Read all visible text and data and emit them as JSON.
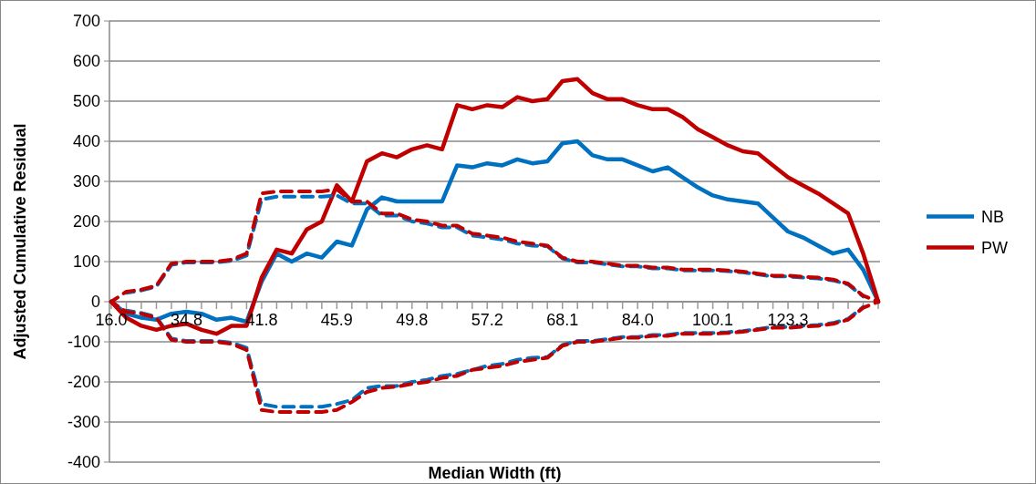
{
  "chart_data": {
    "type": "line",
    "xlabel": "Median Width (ft)",
    "ylabel": "Adjusted Cumulative Residual",
    "categories": [
      "16.0",
      null,
      null,
      null,
      null,
      "34.8",
      null,
      null,
      null,
      null,
      "41.8",
      null,
      null,
      null,
      null,
      "45.9",
      null,
      null,
      null,
      null,
      "49.8",
      null,
      null,
      null,
      null,
      "57.2",
      null,
      null,
      null,
      null,
      "68.1",
      null,
      null,
      null,
      null,
      "84.0",
      null,
      null,
      null,
      null,
      "100.1",
      null,
      null,
      null,
      null,
      "123.3",
      null,
      null,
      null,
      null,
      null,
      null
    ],
    "ylim": [
      -400,
      700
    ],
    "yticks": [
      -400,
      -300,
      -200,
      -100,
      0,
      100,
      200,
      300,
      400,
      500,
      600,
      700
    ],
    "grid": "y",
    "legend": "right",
    "marker": "none",
    "series": [
      {
        "name": "NB",
        "color": "#0070c0",
        "line_style": "solid",
        "values": [
          0,
          -30,
          -40,
          -45,
          -30,
          -25,
          -30,
          -45,
          -40,
          -50,
          50,
          120,
          100,
          120,
          110,
          150,
          140,
          230,
          260,
          250,
          250,
          250,
          250,
          340,
          335,
          345,
          340,
          355,
          345,
          350,
          395,
          400,
          365,
          355,
          355,
          340,
          325,
          335,
          310,
          285,
          265,
          255,
          250,
          245,
          210,
          175,
          160,
          140,
          120,
          130,
          80,
          0
        ]
      },
      {
        "name": "PW",
        "color": "#c00000",
        "line_style": "solid",
        "values": [
          0,
          -40,
          -60,
          -70,
          -60,
          -55,
          -70,
          -80,
          -60,
          -60,
          60,
          130,
          120,
          180,
          200,
          290,
          250,
          350,
          370,
          360,
          380,
          390,
          380,
          490,
          480,
          490,
          485,
          510,
          500,
          505,
          550,
          555,
          520,
          505,
          505,
          490,
          480,
          480,
          460,
          430,
          410,
          390,
          375,
          370,
          340,
          310,
          290,
          270,
          245,
          220,
          120,
          0
        ]
      },
      {
        "color": "#0070c0",
        "line_style": "dashed",
        "values": [
          null,
          22,
          28,
          38,
          92,
          98,
          98,
          98,
          102,
          115,
          255,
          262,
          262,
          262,
          262,
          265,
          245,
          245,
          215,
          215,
          200,
          195,
          185,
          185,
          165,
          160,
          155,
          145,
          140,
          138,
          108,
          98,
          98,
          93,
          88,
          88,
          83,
          83,
          78,
          78,
          78,
          76,
          73,
          68,
          63,
          63,
          60,
          58,
          53,
          43,
          13,
          null
        ]
      },
      {
        "color": "#0070c0",
        "line_style": "dashed",
        "values": [
          null,
          -22,
          -28,
          -38,
          -92,
          -98,
          -98,
          -98,
          -102,
          -115,
          -255,
          -262,
          -262,
          -262,
          -262,
          -255,
          -245,
          -215,
          -210,
          -210,
          -200,
          -195,
          -185,
          -180,
          -170,
          -160,
          -155,
          -145,
          -140,
          -138,
          -108,
          -98,
          -98,
          -93,
          -88,
          -88,
          -83,
          -83,
          -78,
          -78,
          -78,
          -76,
          -73,
          -68,
          -63,
          -63,
          -60,
          -58,
          -53,
          -43,
          -13,
          null
        ]
      },
      {
        "color": "#c00000",
        "line_style": "dashed",
        "values": [
          0,
          25,
          30,
          40,
          95,
          100,
          100,
          100,
          105,
          120,
          270,
          275,
          275,
          275,
          275,
          280,
          250,
          250,
          220,
          220,
          205,
          200,
          190,
          190,
          170,
          165,
          160,
          150,
          145,
          140,
          110,
          100,
          100,
          95,
          90,
          90,
          85,
          85,
          80,
          80,
          80,
          78,
          75,
          70,
          65,
          65,
          62,
          60,
          55,
          45,
          15,
          0
        ]
      },
      {
        "color": "#c00000",
        "line_style": "dashed",
        "values": [
          0,
          -25,
          -30,
          -40,
          -95,
          -100,
          -100,
          -100,
          -105,
          -120,
          -270,
          -275,
          -275,
          -275,
          -275,
          -270,
          -250,
          -225,
          -215,
          -212,
          -205,
          -200,
          -190,
          -185,
          -170,
          -165,
          -160,
          -150,
          -145,
          -140,
          -110,
          -100,
          -100,
          -95,
          -90,
          -90,
          -85,
          -85,
          -80,
          -80,
          -80,
          -78,
          -75,
          -70,
          -65,
          -65,
          -62,
          -60,
          -55,
          -45,
          -15,
          0
        ]
      }
    ]
  }
}
